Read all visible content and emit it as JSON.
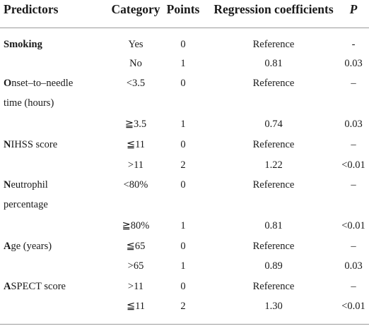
{
  "headers": {
    "predictors": "Predictors",
    "category": "Category",
    "points": "Points",
    "coef": "Regression coefficients",
    "p": "P"
  },
  "rows": [
    {
      "first": "S",
      "rest": "moking",
      "rest2": "",
      "category": "Yes",
      "points": "0",
      "coef": "Reference",
      "p": "-"
    },
    {
      "first": "",
      "rest": "",
      "rest2": "",
      "category": "No",
      "points": "1",
      "coef": "0.81",
      "p": "0.03"
    },
    {
      "first": "O",
      "rest": "nset–to–needle",
      "rest2": "time (hours)",
      "category": "<3.5",
      "points": "0",
      "coef": "Reference",
      "p": "–"
    },
    {
      "first": "",
      "rest": "",
      "rest2": "",
      "category": "≧3.5",
      "points": "1",
      "coef": "0.74",
      "p": "0.03"
    },
    {
      "first": "N",
      "rest": "IHSS score",
      "rest2": "",
      "category": "≦11",
      "points": "0",
      "coef": "Reference",
      "p": "–"
    },
    {
      "first": "",
      "rest": "",
      "rest2": "",
      "category": ">11",
      "points": "2",
      "coef": "1.22",
      "p": "<0.01"
    },
    {
      "first": "N",
      "rest": "eutrophil",
      "rest2": "percentage",
      "category": "<80%",
      "points": "0",
      "coef": "Reference",
      "p": "–"
    },
    {
      "first": "",
      "rest": "",
      "rest2": "",
      "category": "≧80%",
      "points": "1",
      "coef": "0.81",
      "p": "<0.01"
    },
    {
      "first": "A",
      "rest": "ge (years)",
      "rest2": "",
      "category": "≦65",
      "points": "0",
      "coef": "Reference",
      "p": "–"
    },
    {
      "first": "",
      "rest": "",
      "rest2": "",
      "category": ">65",
      "points": "1",
      "coef": "0.89",
      "p": "0.03"
    },
    {
      "first": "A",
      "rest": "SPECT score",
      "rest2": "",
      "category": ">11",
      "points": "0",
      "coef": "Reference",
      "p": "–"
    },
    {
      "first": "",
      "rest": "",
      "rest2": "",
      "category": "≦11",
      "points": "2",
      "coef": "1.30",
      "p": "<0.01"
    }
  ]
}
